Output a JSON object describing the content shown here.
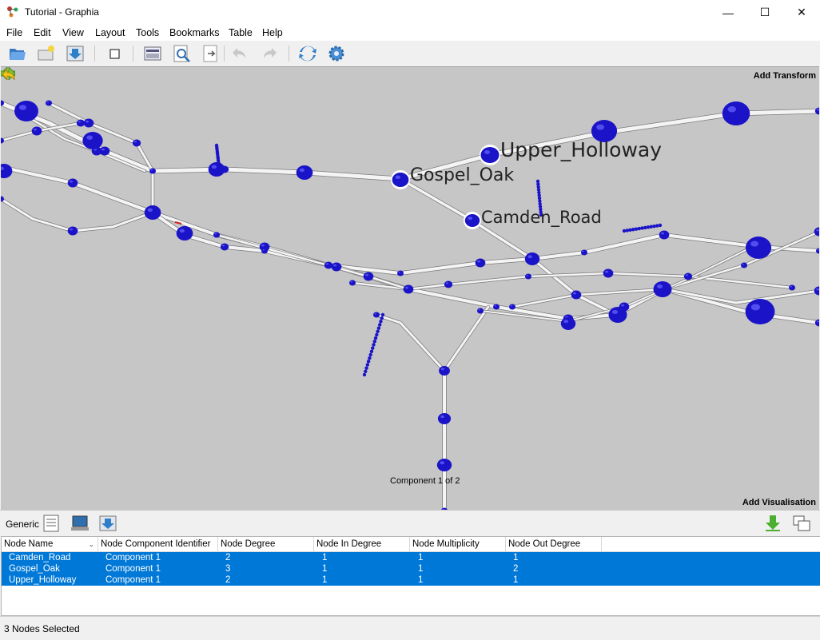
{
  "window": {
    "title": "Tutorial - Graphia",
    "controls": [
      "—",
      "☐",
      "✕"
    ]
  },
  "menu": [
    "File",
    "Edit",
    "View",
    "Layout",
    "Tools",
    "Bookmarks",
    "Table",
    "Help"
  ],
  "toolbar": {
    "icons": [
      "open-file-icon",
      "open-url-icon",
      "save-icon",
      "stop-icon",
      "enrichment-icon",
      "find-icon",
      "export-icon",
      "undo-icon",
      "redo-icon",
      "refresh-layout-icon",
      "settings-icon"
    ]
  },
  "graph": {
    "add_transform": "Add Transform",
    "add_visualisation": "Add Visualisation",
    "component_label": "Component 1 of 2",
    "labels": {
      "upper_holloway": "Upper_Holloway",
      "gospel_oak": "Gospel_Oak",
      "camden_road": "Camden_Road"
    },
    "background": "#c6c6c6",
    "node_color": "#1a13c8"
  },
  "table_toolbar": {
    "label": "Generic"
  },
  "table": {
    "columns": [
      "Node Name",
      "Node Component Identifier",
      "Node Degree",
      "Node In Degree",
      "Node Multiplicity",
      "Node Out Degree"
    ],
    "rows": [
      [
        "Camden_Road",
        "Component 1",
        "2",
        "1",
        "1",
        "1"
      ],
      [
        "Gospel_Oak",
        "Component 1",
        "3",
        "1",
        "1",
        "2"
      ],
      [
        "Upper_Holloway",
        "Component 1",
        "2",
        "1",
        "1",
        "1"
      ]
    ],
    "selection_color": "#0078d7"
  },
  "status": {
    "text": "3 Nodes Selected"
  }
}
